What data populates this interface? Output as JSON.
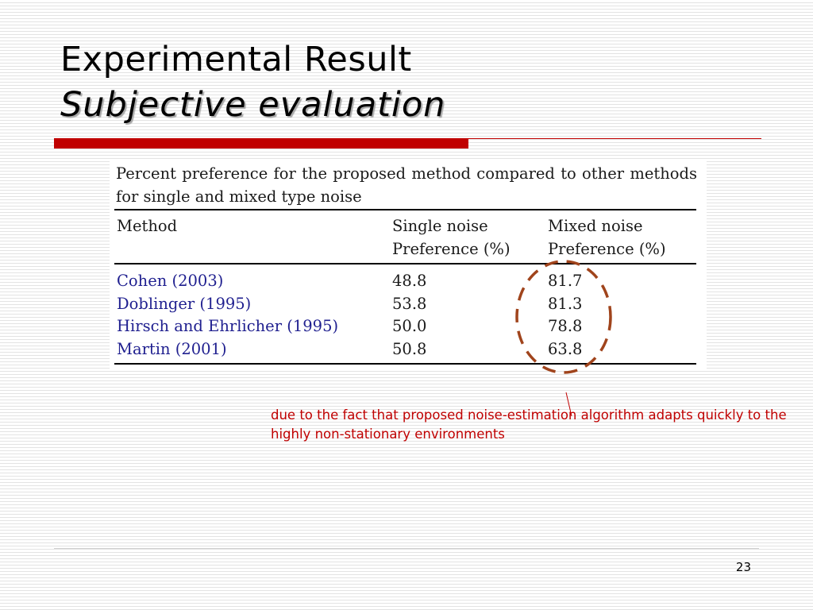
{
  "slide": {
    "title_line1": "Experimental Result",
    "title_line2": "Subjective evaluation",
    "page_number": "23"
  },
  "table": {
    "caption": "Percent preference for the proposed method compared to other methods for single and mixed type noise",
    "headers": {
      "method": "Method",
      "single_line1": "Single noise",
      "single_line2": "Preference (%)",
      "mixed_line1": "Mixed noise",
      "mixed_line2": "Preference (%)"
    },
    "rows": [
      {
        "method": "Cohen (2003)",
        "single": "48.8",
        "mixed": "81.7"
      },
      {
        "method": "Doblinger (1995)",
        "single": "53.8",
        "mixed": "81.3"
      },
      {
        "method": "Hirsch and Ehrlicher (1995)",
        "single": "50.0",
        "mixed": "78.8"
      },
      {
        "method": "Martin (2001)",
        "single": "50.8",
        "mixed": "63.8"
      }
    ]
  },
  "annotation": {
    "text": "due to the fact that proposed noise-estimation algorithm adapts quickly to the highly non-stationary environments"
  },
  "colors": {
    "accent_red": "#c00000",
    "highlight_brown": "#a0441c",
    "method_blue": "#1f1f8f"
  }
}
